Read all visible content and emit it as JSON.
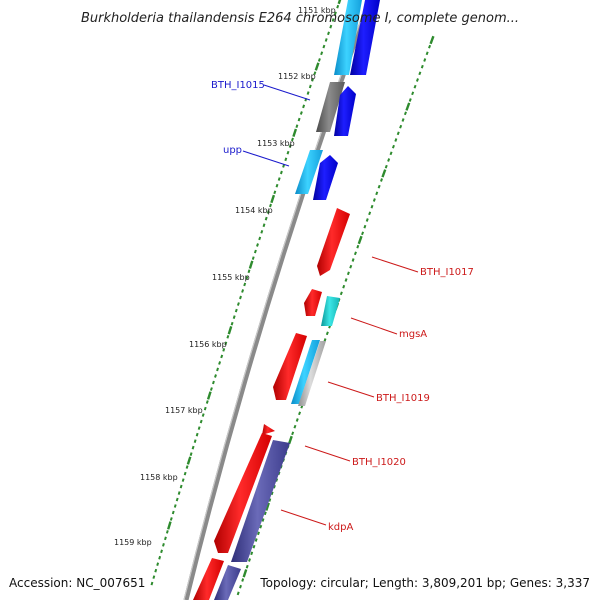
{
  "title": "Burkholderia thailandensis E264 chromosome I, complete genom...",
  "accession": "Accession: NC_007651",
  "summary": "Topology: circular; Length: 3,809,201 bp; Genes: 3,337",
  "ticks": [
    "1151 kbp",
    "1152 kbp",
    "1153 kbp",
    "1154 kbp",
    "1155 kbp",
    "1156 kbp",
    "1157 kbp",
    "1158 kbp",
    "1159 kbp"
  ],
  "genes": [
    {
      "name": "BTH_I1015",
      "strand": "forward"
    },
    {
      "name": "upp",
      "strand": "forward"
    },
    {
      "name": "BTH_I1017",
      "strand": "reverse"
    },
    {
      "name": "mgsA",
      "strand": "reverse"
    },
    {
      "name": "BTH_I1019",
      "strand": "reverse"
    },
    {
      "name": "BTH_I1020",
      "strand": "reverse"
    },
    {
      "name": "kdpA",
      "strand": "reverse"
    }
  ],
  "colors": {
    "forward_label": "#1a1acc",
    "reverse_label": "#cc1a1a",
    "backbone": "#8a8a8a",
    "tick": "#2e8b2e",
    "cds_red": "#ff1a1a",
    "cds_blue": "#1414e6",
    "cds_cyan": "#14c8f0",
    "cds_teal": "#14c8c8",
    "cds_gray": "#6e6e6e",
    "cds_purple": "#4a4a96"
  }
}
